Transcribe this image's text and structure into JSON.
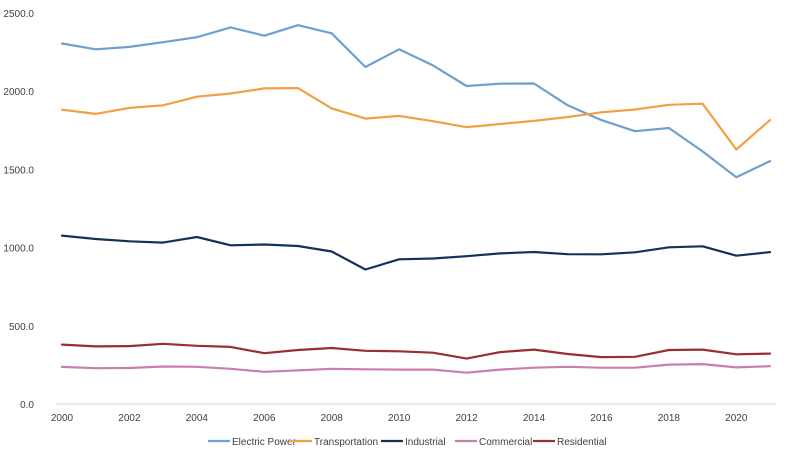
{
  "chart_data": {
    "type": "line",
    "title": "",
    "xlabel": "",
    "ylabel": "",
    "x": [
      2000,
      2001,
      2002,
      2003,
      2004,
      2005,
      2006,
      2007,
      2008,
      2009,
      2010,
      2011,
      2012,
      2013,
      2014,
      2015,
      2016,
      2017,
      2018,
      2019,
      2020,
      2021
    ],
    "xticks": [
      "2000",
      "2002",
      "2004",
      "2006",
      "2008",
      "2010",
      "2012",
      "2014",
      "2016",
      "2018",
      "2020"
    ],
    "ylim": [
      0,
      2500
    ],
    "yticks": [
      "0.0",
      "500.0",
      "1000.0",
      "1500.0",
      "2000.0",
      "2500.0"
    ],
    "grid": false,
    "legend_position": "bottom",
    "series": [
      {
        "name": "Electric Power",
        "color": "#6f9fcf",
        "values": [
          2305,
          2268,
          2283,
          2313,
          2345,
          2408,
          2355,
          2422,
          2370,
          2155,
          2268,
          2165,
          2033,
          2048,
          2049,
          1910,
          1815,
          1744,
          1765,
          1615,
          1450,
          1553
        ]
      },
      {
        "name": "Transportation",
        "color": "#f2a041",
        "values": [
          1882,
          1855,
          1893,
          1910,
          1965,
          1985,
          2018,
          2020,
          1890,
          1825,
          1842,
          1808,
          1770,
          1790,
          1810,
          1835,
          1865,
          1883,
          1913,
          1920,
          1627,
          1815
        ]
      },
      {
        "name": "Industrial",
        "color": "#13325a",
        "values": [
          1077,
          1055,
          1040,
          1032,
          1068,
          1015,
          1020,
          1010,
          975,
          860,
          925,
          930,
          945,
          963,
          972,
          958,
          957,
          970,
          1002,
          1008,
          948,
          971
        ]
      },
      {
        "name": "Commercial",
        "color": "#c97fae",
        "values": [
          237,
          229,
          230,
          240,
          238,
          225,
          206,
          215,
          225,
          222,
          220,
          220,
          200,
          220,
          232,
          238,
          232,
          232,
          252,
          255,
          234,
          242
        ]
      },
      {
        "name": "Residential",
        "color": "#9b2e32",
        "values": [
          380,
          368,
          370,
          385,
          372,
          365,
          325,
          345,
          358,
          340,
          337,
          328,
          290,
          332,
          348,
          320,
          300,
          302,
          345,
          348,
          318,
          322
        ]
      }
    ]
  }
}
